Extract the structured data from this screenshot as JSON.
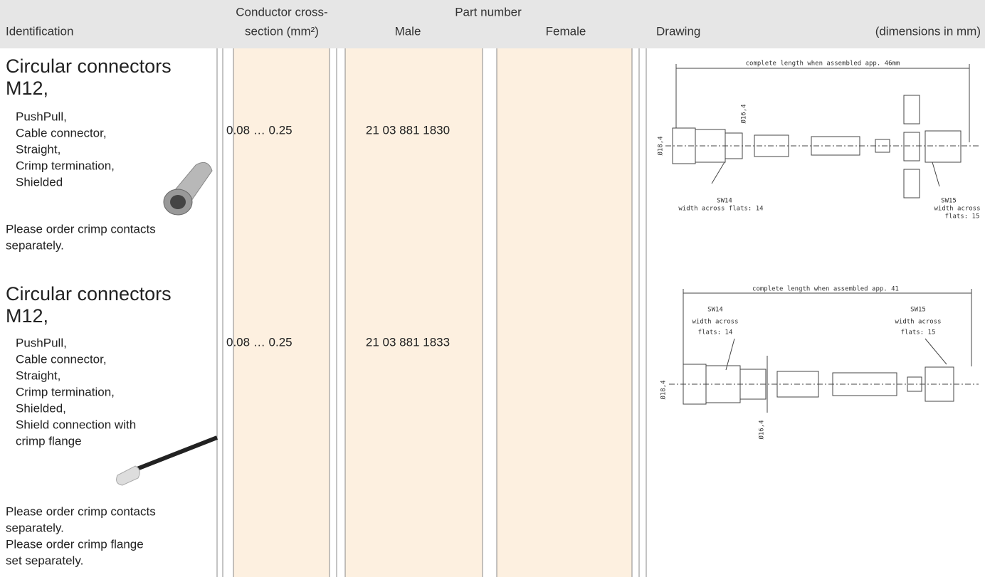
{
  "header": {
    "identification": "Identification",
    "conductor": [
      "Conductor cross-",
      "section (mm²)"
    ],
    "part_number": "Part number",
    "male": "Male",
    "female": "Female",
    "drawing": "Drawing",
    "dimensions": "(dimensions in mm)"
  },
  "rows": [
    {
      "title": [
        "Circular connectors",
        "M12,"
      ],
      "features": [
        "PushPull,",
        "Cable connector,",
        "Straight,",
        "Crimp termination,",
        "Shielded"
      ],
      "notes": [
        "Please order crimp contacts",
        "separately."
      ],
      "conductor": "0.08 … 0.25",
      "male": "21 03 881 1830",
      "drawing": {
        "length": "complete length when assembled app. 46mm",
        "d1": "Ø16,4",
        "d2": "Ø18,4",
        "sw1": "SW14",
        "sw1_text": [
          "width across flats: 14"
        ],
        "sw2": "SW15",
        "sw2_text": [
          "width across",
          "flats: 15"
        ]
      }
    },
    {
      "title": [
        "Circular connectors",
        "M12,"
      ],
      "features": [
        "PushPull,",
        "Cable connector,",
        "Straight,",
        "Crimp termination,",
        "Shielded,",
        "Shield connection with",
        "crimp flange"
      ],
      "notes": [
        "Please order crimp contacts",
        "separately.",
        "Please order crimp flange",
        "set separately."
      ],
      "conductor": "0.08 … 0.25",
      "male": "21 03 881 1833",
      "drawing": {
        "length": "complete length when assembled app. 41",
        "d1": "Ø16,4",
        "d2": "Ø18,4",
        "sw1": "SW14",
        "sw1_text": [
          "width across",
          "flats: 14"
        ],
        "sw2": "SW15",
        "sw2_text": [
          "width across",
          "flats: 15"
        ]
      }
    }
  ]
}
